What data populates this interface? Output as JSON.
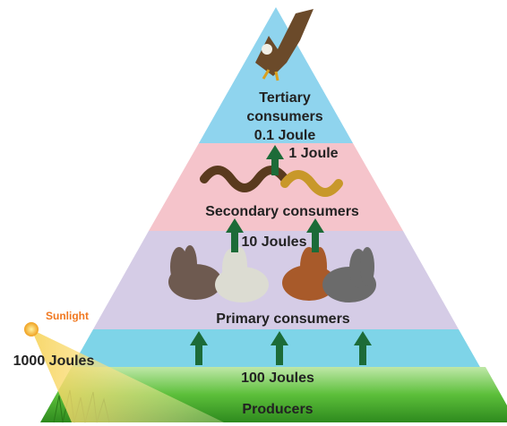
{
  "sunlight": {
    "label": "Sunlight",
    "energy": "1000 Joules"
  },
  "levels": [
    {
      "label": [
        "Tertiary",
        "consumers"
      ],
      "energy": "0.1 Joule"
    },
    {
      "label": [
        "Secondary consumers"
      ],
      "energy": "1 Joule"
    },
    {
      "label": [
        "Primary consumers"
      ],
      "energy": "10 Joules"
    },
    {
      "label": [
        "Producers"
      ],
      "energy": "100 Joules"
    }
  ]
}
